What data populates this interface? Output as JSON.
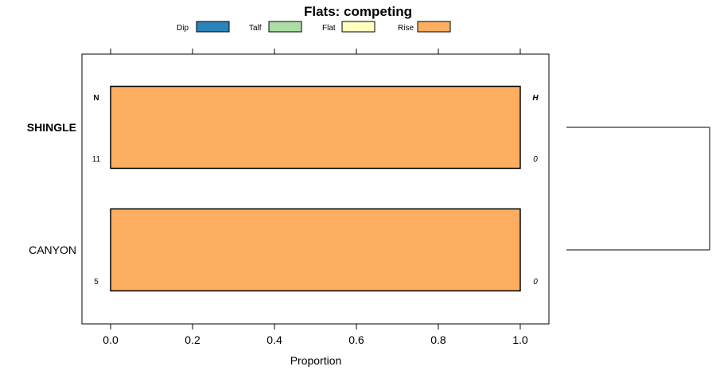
{
  "chart_data": {
    "type": "bar",
    "orientation": "horizontal",
    "stacked": true,
    "title": "Flats: competing",
    "xlabel": "Proportion",
    "ylabel": "",
    "xlim": [
      -0.07,
      1.07
    ],
    "x_ticks": [
      0.0,
      0.2,
      0.4,
      0.6,
      0.8,
      1.0
    ],
    "x_tick_labels": [
      "0.0",
      "0.2",
      "0.4",
      "0.6",
      "0.8",
      "1.0"
    ],
    "categories": [
      "SHINGLE",
      "CANYON"
    ],
    "bold_categories": [
      "SHINGLE"
    ],
    "series": [
      {
        "name": "Dip",
        "color": "#2b83ba",
        "values": [
          0,
          0
        ]
      },
      {
        "name": "Talf",
        "color": "#abdda4",
        "values": [
          0,
          0
        ]
      },
      {
        "name": "Flat",
        "color": "#ffffbf",
        "values": [
          0,
          0
        ]
      },
      {
        "name": "Rise",
        "color": "#fdae61",
        "values": [
          1.0,
          1.0
        ]
      }
    ],
    "left_annotation_header": "N",
    "right_annotation_header": "H",
    "n_values": [
      "11",
      "5"
    ],
    "h_values": [
      "0",
      "0"
    ],
    "legend_position": "top",
    "dendrogram": "right"
  }
}
